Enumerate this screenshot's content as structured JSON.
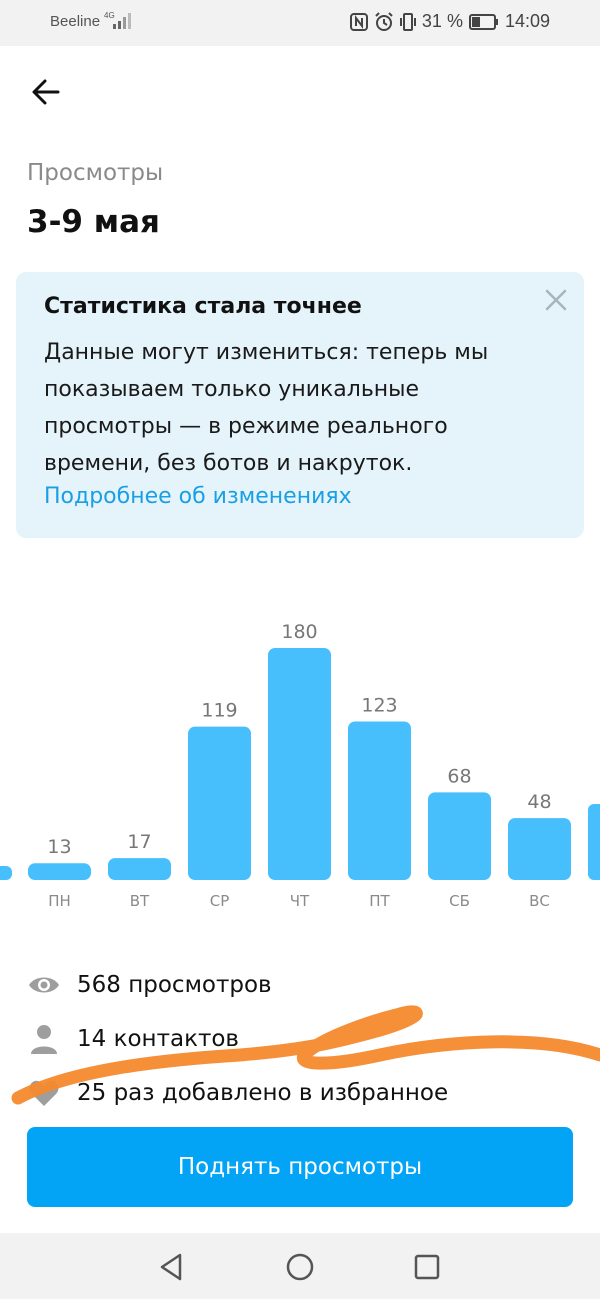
{
  "status_bar": {
    "carrier": "Beeline",
    "network": "4G",
    "battery": "31 %",
    "time": "14:09"
  },
  "header": {
    "back_icon": "arrow-left-icon",
    "subtitle": "Просмотры",
    "title": "3-9 мая"
  },
  "notice": {
    "title": "Статистика стала точнее",
    "text": "Данные могут измениться: теперь мы показываем только уникальные просмотры — в режиме реального времени, без ботов и накруток.",
    "link": "Подробнее об изменениях",
    "close_icon": "close-icon"
  },
  "chart_data": {
    "type": "bar",
    "categories": [
      "ПН",
      "ВТ",
      "СР",
      "ЧТ",
      "ПТ",
      "СБ",
      "ВС"
    ],
    "values": [
      13,
      17,
      119,
      180,
      123,
      68,
      48
    ],
    "bar_color": "#46bffc",
    "title": "",
    "xlabel": "",
    "ylabel": "",
    "grid": false
  },
  "stats": [
    {
      "icon": "eye-icon",
      "text": "568 просмотров"
    },
    {
      "icon": "person-icon",
      "text": "14 контактов"
    },
    {
      "icon": "heart-icon",
      "text": "25 раз добавлено в избранное"
    }
  ],
  "cta": {
    "label": "Поднять просмотры",
    "color": "#03a4f5"
  },
  "nav": {
    "back": "triangle-back-icon",
    "home": "circle-home-icon",
    "recent": "square-recent-icon"
  }
}
